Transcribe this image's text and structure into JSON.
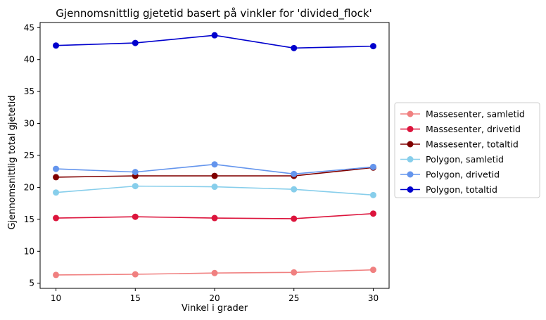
{
  "chart_data": {
    "type": "line",
    "title": "Gjennomsnittlig gjetetid basert på vinkler for 'divided_flock'",
    "xlabel": "Vinkel i grader",
    "ylabel": "Gjennomsnittlig total gjetetid",
    "x": [
      10,
      15,
      20,
      25,
      30
    ],
    "xticks": [
      "10",
      "15",
      "20",
      "25",
      "30"
    ],
    "xlim": [
      9,
      31
    ],
    "yticks": [
      "5",
      "10",
      "15",
      "20",
      "25",
      "30",
      "35",
      "40",
      "45"
    ],
    "ylim": [
      4.2,
      45.8
    ],
    "grid": false,
    "legend_position": "right, outside plot",
    "series": [
      {
        "name": "Massesenter, samletid",
        "color": "#f08080",
        "values": [
          6.3,
          6.4,
          6.6,
          6.7,
          7.1
        ]
      },
      {
        "name": "Massesenter, drivetid",
        "color": "#dc143c",
        "values": [
          15.2,
          15.4,
          15.2,
          15.1,
          15.9
        ]
      },
      {
        "name": "Massesenter, totaltid",
        "color": "#800000",
        "values": [
          21.6,
          21.8,
          21.8,
          21.8,
          23.1
        ]
      },
      {
        "name": "Polygon, samletid",
        "color": "#87ceeb",
        "values": [
          19.2,
          20.2,
          20.1,
          19.7,
          18.8
        ]
      },
      {
        "name": "Polygon, drivetid",
        "color": "#6495ed",
        "values": [
          22.9,
          22.4,
          23.6,
          22.1,
          23.2
        ]
      },
      {
        "name": "Polygon, totaltid",
        "color": "#0000cd",
        "values": [
          42.2,
          42.6,
          43.8,
          41.8,
          42.1
        ]
      }
    ]
  }
}
